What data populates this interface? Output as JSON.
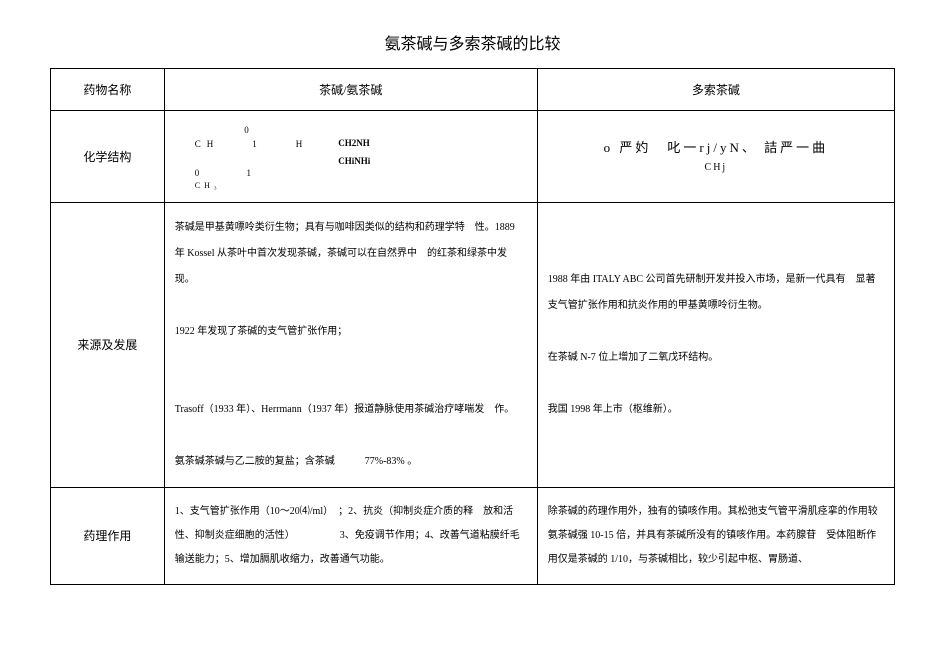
{
  "title": "氨茶碱与多索茶碱的比较",
  "headers": {
    "drug_name": "药物名称",
    "col2": "茶碱/氨茶碱",
    "col3": "多索茶碱"
  },
  "rows": {
    "r1_label": "化学结构",
    "r1_chem_left": "      0\nCH    1    H\n\n0     1",
    "r1_chem_right_a": "CH2NH",
    "r1_chem_right_b": "CHiNHi",
    "r1_chem_sub": "CH₃",
    "r1_col3_main": "o 严妁　叱一rj/yN、 詰严一曲",
    "r1_col3_sub": "CHj",
    "r2_label": "来源及发展",
    "r2_col2": "茶碱是甲基黄嘌呤类衍生物；具有与咖啡因类似的结构和药理学特　性。1889 年 Kossel 从茶叶中首次发现茶碱，茶碱可以在自然界中　的红茶和绿茶中发现。\n\n1922 年发现了茶碱的支气管扩张作用；\n\n\nTrasoff（1933 年）、Herrmann（1937 年）报道静脉使用茶碱治疗哮喘发　作。\n\n氨茶碱茶碱与乙二胺的复盐；含茶碱　　　77%-83% 。",
    "r2_col3": "1988 年由 ITALY ABC 公司首先研制开发并投入市场，是新一代具有　显著支气管扩张作用和抗炎作用的甲基黄嘌呤衍生物。\n\n在茶碱 N-7 位上增加了二氧戊环结构。\n\n我国 1998 年上市（枢维新）。",
    "r3_label": "药理作用",
    "r3_col2": "1、支气管扩张作用（10〜20⑷/ml）　；2、抗炎（抑制炎症介质的释　放和活性、抑制炎症细胞的活性）　　　　　3、免疫调节作用；4、改善气道粘膜纤毛输送能力；5、增加膈肌收缩力，改善通气功能。",
    "r3_col3": "除茶碱的药理作用外，独有的镇咳作用。其松弛支气管平滑肌痉挛的作用较氨茶碱强 10-15 倍，并具有茶碱所没有的镇咳作用。本药腺苷　受体阻断作用仅是茶碱的 1/10，与茶碱相比，较少引起中枢、胃肠道、"
  },
  "style": {
    "page_bg": "#ffffff",
    "text_color": "#000000",
    "border_color": "#000000",
    "title_fontsize": 16,
    "header_fontsize": 12,
    "body_fontsize": 10,
    "font_family": "SimSun"
  }
}
